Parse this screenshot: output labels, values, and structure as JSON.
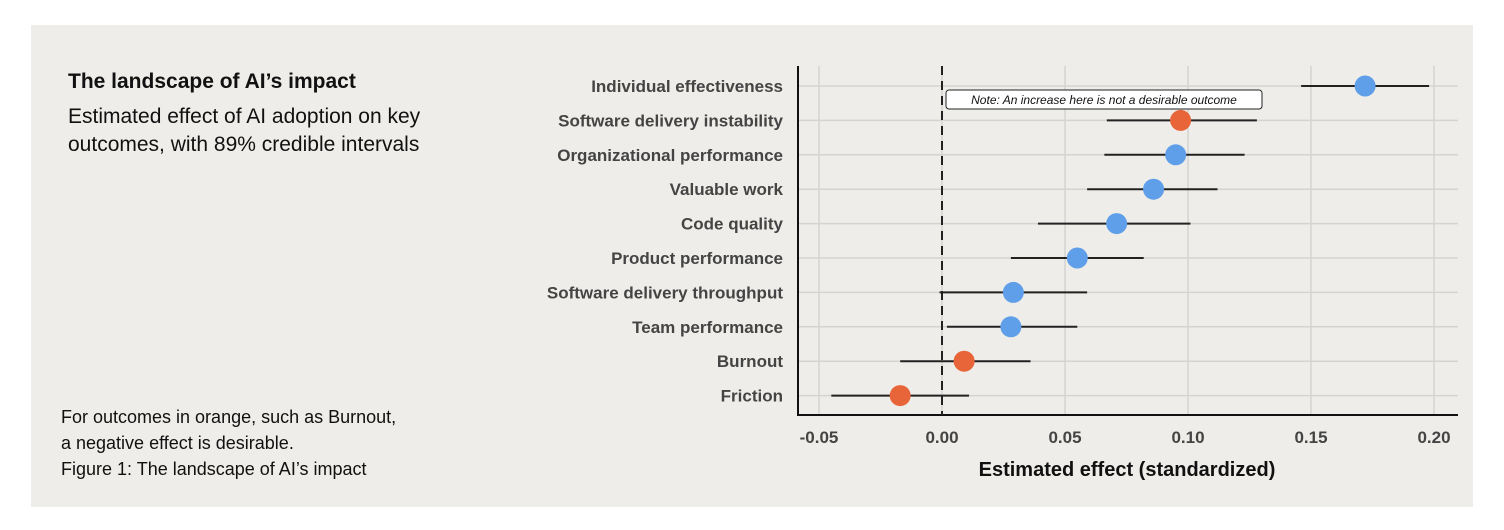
{
  "header": {
    "title": "The landscape of AI’s impact",
    "subtitle": "Estimated effect of AI adoption on key outcomes, with 89% credible intervals"
  },
  "footnote": {
    "line1": "For outcomes in orange, such as Burnout,",
    "line2": "a negative effect is desirable.",
    "caption": "Figure 1: The landscape of AI’s impact"
  },
  "chart_data": {
    "type": "scatter",
    "subtype": "forest-plot",
    "title": "The landscape of AI’s impact",
    "xlabel": "Estimated effect (standardized)",
    "ylabel": "",
    "xlim": [
      -0.06,
      0.21
    ],
    "xticks": [
      -0.05,
      0.0,
      0.05,
      0.1,
      0.15,
      0.2
    ],
    "xtick_labels": [
      "-0.05",
      "0.00",
      "0.05",
      "0.10",
      "0.15",
      "0.20"
    ],
    "reference_line": 0.0,
    "grid": true,
    "colors": {
      "positive": "#5f9ee8",
      "negative": "#e8653a",
      "line": "#222222",
      "grid": "#d4d3cf"
    },
    "annotation": "Note: An increase here is not a desirable outcome",
    "outcomes": [
      {
        "label": "Individual effectiveness",
        "estimate": 0.172,
        "low": 0.146,
        "high": 0.198,
        "negative_desirable": false
      },
      {
        "label": "Software delivery instability",
        "estimate": 0.097,
        "low": 0.067,
        "high": 0.128,
        "negative_desirable": true
      },
      {
        "label": "Organizational performance",
        "estimate": 0.095,
        "low": 0.066,
        "high": 0.123,
        "negative_desirable": false
      },
      {
        "label": "Valuable work",
        "estimate": 0.086,
        "low": 0.059,
        "high": 0.112,
        "negative_desirable": false
      },
      {
        "label": "Code quality",
        "estimate": 0.071,
        "low": 0.039,
        "high": 0.101,
        "negative_desirable": false
      },
      {
        "label": "Product performance",
        "estimate": 0.055,
        "low": 0.028,
        "high": 0.082,
        "negative_desirable": false
      },
      {
        "label": "Software delivery throughput",
        "estimate": 0.029,
        "low": -0.001,
        "high": 0.059,
        "negative_desirable": false
      },
      {
        "label": "Team performance",
        "estimate": 0.028,
        "low": 0.002,
        "high": 0.055,
        "negative_desirable": false
      },
      {
        "label": "Burnout",
        "estimate": 0.009,
        "low": -0.017,
        "high": 0.036,
        "negative_desirable": true
      },
      {
        "label": "Friction",
        "estimate": -0.017,
        "low": -0.045,
        "high": 0.011,
        "negative_desirable": true
      }
    ]
  }
}
